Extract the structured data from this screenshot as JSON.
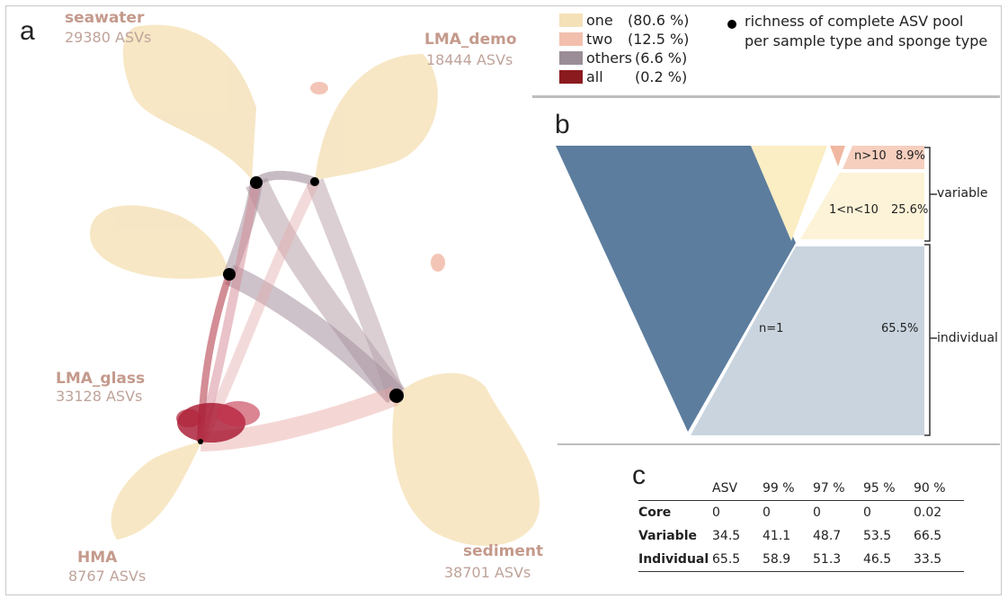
{
  "panels": {
    "a": "a",
    "b": "b",
    "c": "c"
  },
  "network_groups": [
    {
      "name": "seawater",
      "count": "29380 ASVs"
    },
    {
      "name": "LMA_demo",
      "count": "18444 ASVs"
    },
    {
      "name": "LMA_glass",
      "count": "33128 ASVs"
    },
    {
      "name": "HMA",
      "count": "8767 ASVs"
    },
    {
      "name": "sediment",
      "count": "38701 ASVs"
    }
  ],
  "legend": {
    "items": [
      {
        "label": "one",
        "pct": "(80.6 %)",
        "color": "#f5e1b8"
      },
      {
        "label": "two",
        "pct": "(12.5 %)",
        "color": "#f2bfae"
      },
      {
        "label": "others",
        "pct": "(6.6 %)",
        "color": "#9a8d97"
      },
      {
        "label": "all",
        "pct": "(0.2 %)",
        "color": "#8b1a1f"
      }
    ],
    "dot_line1": "richness of complete ASV pool",
    "dot_line2": "per sample type and sponge type"
  },
  "funnel": {
    "segments": [
      {
        "label": "n>10",
        "pct": "8.9%",
        "color": "#f6cfbe"
      },
      {
        "label": "1<n<10",
        "pct": "25.6%",
        "color": "#fdf3d8"
      },
      {
        "label": "n=1",
        "pct": "65.5%",
        "color": "#c9d4df"
      }
    ],
    "brackets": {
      "variable": "variable",
      "individual": "individual"
    },
    "colors": {
      "dark": "#5c7d9e",
      "cream": "#fbeec4",
      "salmon": "#f0b8a1"
    }
  },
  "table": {
    "headers": [
      "",
      "ASV",
      "99 %",
      "97 %",
      "95 %",
      "90 %"
    ],
    "rows": [
      {
        "name": "Core",
        "values": [
          "0",
          "0",
          "0",
          "0",
          "0.02"
        ]
      },
      {
        "name": "Variable",
        "values": [
          "34.5",
          "41.1",
          "48.7",
          "53.5",
          "66.5"
        ]
      },
      {
        "name": "Individual",
        "values": [
          "65.5",
          "58.9",
          "51.3",
          "46.5",
          "33.5"
        ]
      }
    ]
  }
}
